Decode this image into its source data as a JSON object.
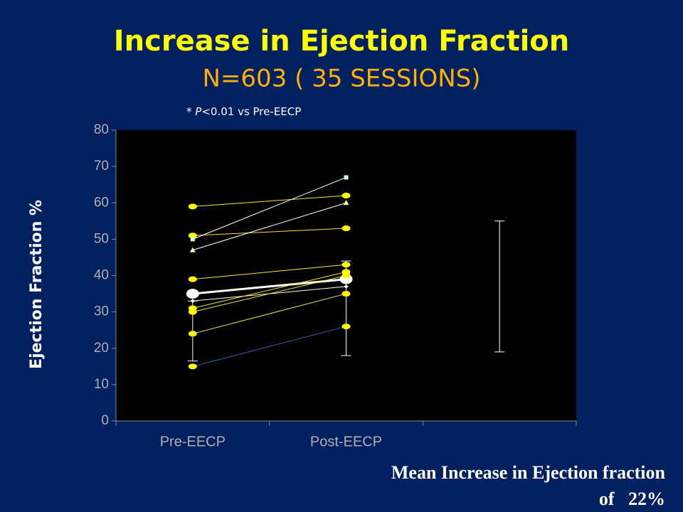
{
  "chart_data": {
    "type": "line",
    "title": "Increase in Ejection Fraction",
    "subtitle": "N=603 ( 35 SESSIONS)",
    "note": [
      "* ",
      "P",
      "<0.01 vs Pre-EECP"
    ],
    "y_label": "Ejection Fraction %",
    "footer": [
      "Mean Increase in Ejection fraction",
      "of   22%"
    ],
    "categories": [
      "Pre-EECP",
      "Post-EECP",
      null
    ],
    "ylim": [
      0,
      80
    ],
    "yticks": [
      0,
      10,
      20,
      30,
      40,
      50,
      60,
      70,
      80
    ],
    "series": [
      {
        "color": "#f5e23c",
        "marker": "circle",
        "marker_color": "#ffff00",
        "values": [
          59,
          62,
          null
        ]
      },
      {
        "color": "#f5e23c",
        "marker": "circle",
        "marker_color": "#ffff00",
        "values": [
          51,
          53,
          null
        ]
      },
      {
        "color": "#ffffff",
        "marker": "square",
        "marker_color": "#ccffcc",
        "values": [
          50,
          67,
          null
        ]
      },
      {
        "color": "#ffffff",
        "marker": "triangle",
        "marker_color": "#ffff99",
        "values": [
          47,
          60,
          null
        ]
      },
      {
        "color": "#f5e23c",
        "marker": "circle",
        "marker_color": "#ffff00",
        "values": [
          39,
          43,
          null
        ]
      },
      {
        "color": "#ffffff",
        "marker": "circle",
        "marker_color": "#ffffff",
        "width": 3,
        "size": 7,
        "values": [
          35,
          39,
          null
        ]
      },
      {
        "color": "#ffffff",
        "marker": "diamond",
        "marker_color": "#ffffff",
        "values": [
          33,
          37,
          null
        ]
      },
      {
        "color": "#f5e23c",
        "marker": "circle",
        "marker_color": "#ffff00",
        "values": [
          31,
          41,
          null
        ]
      },
      {
        "color": "#f5e23c",
        "marker": "circle",
        "marker_color": "#ffff00",
        "values": [
          30,
          40,
          null
        ]
      },
      {
        "color": "#f5e23c",
        "marker": "circle",
        "marker_color": "#ffff00",
        "values": [
          24,
          35,
          null
        ]
      },
      {
        "color": "#3060b0",
        "marker": "circle",
        "marker_color": "#ffff00",
        "values": [
          15,
          26,
          null
        ]
      }
    ],
    "error_bars": [
      {
        "low": 16.5,
        "high": 33
      },
      {
        "low": 18,
        "high": 44
      },
      {
        "low": 19,
        "high": 55
      }
    ],
    "error_color": "#ffffff"
  }
}
